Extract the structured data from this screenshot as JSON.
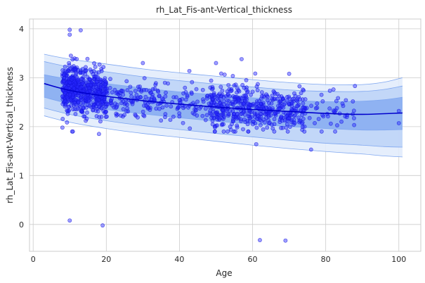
{
  "chart_data": {
    "type": "scatter",
    "title": "rh_Lat_Fis-ant-Vertical_thickness",
    "xlabel": "Age",
    "ylabel": "rh_Lat_Fis-ant-Vertical_thickness",
    "xlim": [
      -1,
      106
    ],
    "ylim": [
      -0.55,
      4.2
    ],
    "grid": true,
    "xticks": [
      0,
      20,
      40,
      60,
      80,
      100
    ],
    "yticks": [
      0,
      1,
      2,
      3,
      4
    ],
    "colors": {
      "points": "#2828ff",
      "median_line": "#0000cc",
      "band_inner": "#7ea6f0",
      "band_middle": "#bcd2f7",
      "band_outer": "#e1ebfc",
      "band_edge": "#7ea6f0"
    },
    "median_curve": {
      "x": [
        3,
        10,
        20,
        30,
        40,
        50,
        60,
        70,
        80,
        90,
        101
      ],
      "y": [
        2.88,
        2.74,
        2.62,
        2.53,
        2.46,
        2.4,
        2.35,
        2.31,
        2.27,
        2.25,
        2.28
      ]
    },
    "percentile_bands": [
      {
        "name": "outer",
        "x": [
          3,
          10,
          20,
          30,
          40,
          50,
          60,
          70,
          80,
          90,
          96,
          101
        ],
        "lower": [
          2.22,
          2.09,
          1.96,
          1.86,
          1.78,
          1.7,
          1.62,
          1.55,
          1.49,
          1.44,
          1.4,
          1.38
        ],
        "upper": [
          3.48,
          3.38,
          3.28,
          3.18,
          3.1,
          3.03,
          2.96,
          2.9,
          2.86,
          2.86,
          2.91,
          3.0
        ]
      },
      {
        "name": "middle",
        "x": [
          3,
          10,
          20,
          30,
          40,
          50,
          60,
          70,
          80,
          90,
          96,
          101
        ],
        "lower": [
          2.38,
          2.25,
          2.12,
          2.02,
          1.94,
          1.86,
          1.79,
          1.72,
          1.66,
          1.62,
          1.59,
          1.58
        ],
        "upper": [
          3.33,
          3.22,
          3.12,
          3.02,
          2.94,
          2.87,
          2.81,
          2.75,
          2.72,
          2.72,
          2.76,
          2.83
        ]
      },
      {
        "name": "inner",
        "x": [
          3,
          10,
          20,
          30,
          40,
          50,
          60,
          70,
          80,
          90,
          96,
          101
        ],
        "lower": [
          2.6,
          2.47,
          2.35,
          2.26,
          2.18,
          2.11,
          2.05,
          2.0,
          1.96,
          1.93,
          1.93,
          1.94
        ],
        "upper": [
          3.06,
          2.97,
          2.88,
          2.79,
          2.71,
          2.65,
          2.59,
          2.54,
          2.51,
          2.52,
          2.55,
          2.6
        ]
      }
    ],
    "outliers": [
      {
        "x": 10,
        "y": 0.08
      },
      {
        "x": 19,
        "y": -0.02
      },
      {
        "x": 62,
        "y": -0.32
      },
      {
        "x": 69,
        "y": -0.33
      },
      {
        "x": 10,
        "y": 3.98
      },
      {
        "x": 13,
        "y": 3.97
      },
      {
        "x": 10,
        "y": 3.88
      },
      {
        "x": 57,
        "y": 3.38
      },
      {
        "x": 8,
        "y": 1.98
      },
      {
        "x": 18,
        "y": 1.85
      },
      {
        "x": 61,
        "y": 1.64
      },
      {
        "x": 76,
        "y": 1.53
      },
      {
        "x": 100,
        "y": 2.32
      },
      {
        "x": 100,
        "y": 2.07
      },
      {
        "x": 88,
        "y": 2.83
      },
      {
        "x": 70,
        "y": 3.08
      },
      {
        "x": 50,
        "y": 3.3
      },
      {
        "x": 30,
        "y": 3.3
      }
    ],
    "scatter_clusters": [
      {
        "x_range": [
          8,
          12
        ],
        "count": 260,
        "y_mean": 2.82,
        "y_sd": 0.24
      },
      {
        "x_range": [
          12,
          17
        ],
        "count": 200,
        "y_mean": 2.74,
        "y_sd": 0.23
      },
      {
        "x_range": [
          17,
          20
        ],
        "count": 140,
        "y_mean": 2.66,
        "y_sd": 0.22
      },
      {
        "x_range": [
          20,
          35
        ],
        "count": 120,
        "y_mean": 2.57,
        "y_sd": 0.21
      },
      {
        "x_range": [
          35,
          48
        ],
        "count": 70,
        "y_mean": 2.47,
        "y_sd": 0.21
      },
      {
        "x_range": [
          48,
          60
        ],
        "count": 240,
        "y_mean": 2.4,
        "y_sd": 0.22
      },
      {
        "x_range": [
          60,
          75
        ],
        "count": 230,
        "y_mean": 2.33,
        "y_sd": 0.22
      },
      {
        "x_range": [
          75,
          88
        ],
        "count": 40,
        "y_mean": 2.3,
        "y_sd": 0.2
      }
    ]
  }
}
